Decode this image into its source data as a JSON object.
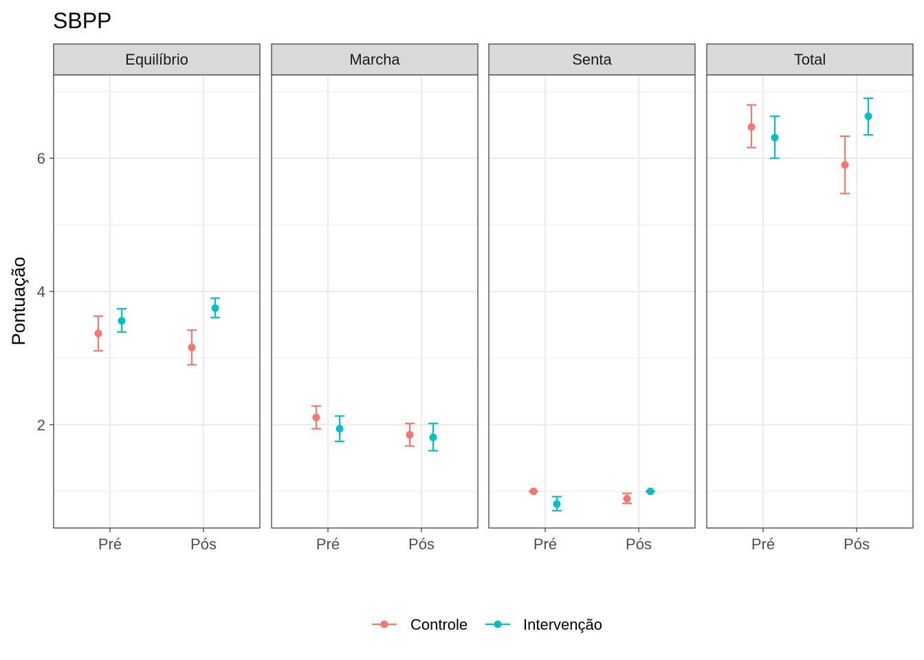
{
  "chart_data": {
    "type": "scatter",
    "title": "SBPP",
    "xlabel": "",
    "ylabel": "Pontuação",
    "ylim": [
      0.45,
      7.25
    ],
    "yticks": [
      2,
      4,
      6
    ],
    "grid": true,
    "legend_position": "bottom",
    "categories": [
      "Pré",
      "Pós"
    ],
    "facets": [
      "Equilíbrio",
      "Marcha",
      "Senta",
      "Total"
    ],
    "series": [
      {
        "name": "Controle",
        "color": "#F8766D",
        "panels": {
          "Equilíbrio": [
            {
              "x": "Pré",
              "y": 3.37,
              "ymin": 3.11,
              "ymax": 3.63
            },
            {
              "x": "Pós",
              "y": 3.16,
              "ymin": 2.9,
              "ymax": 3.42
            }
          ],
          "Marcha": [
            {
              "x": "Pré",
              "y": 2.11,
              "ymin": 1.94,
              "ymax": 2.28
            },
            {
              "x": "Pós",
              "y": 1.85,
              "ymin": 1.68,
              "ymax": 2.02
            }
          ],
          "Senta": [
            {
              "x": "Pré",
              "y": 1.0,
              "ymin": 1.0,
              "ymax": 1.0
            },
            {
              "x": "Pós",
              "y": 0.89,
              "ymin": 0.82,
              "ymax": 0.97
            }
          ],
          "Total": [
            {
              "x": "Pré",
              "y": 6.47,
              "ymin": 6.16,
              "ymax": 6.8
            },
            {
              "x": "Pós",
              "y": 5.9,
              "ymin": 5.47,
              "ymax": 6.33
            }
          ]
        }
      },
      {
        "name": "Intervenção",
        "color": "#00BFC4",
        "panels": {
          "Equilíbrio": [
            {
              "x": "Pré",
              "y": 3.56,
              "ymin": 3.39,
              "ymax": 3.74
            },
            {
              "x": "Pós",
              "y": 3.75,
              "ymin": 3.61,
              "ymax": 3.9
            }
          ],
          "Marcha": [
            {
              "x": "Pré",
              "y": 1.94,
              "ymin": 1.75,
              "ymax": 2.13
            },
            {
              "x": "Pós",
              "y": 1.81,
              "ymin": 1.61,
              "ymax": 2.02
            }
          ],
          "Senta": [
            {
              "x": "Pré",
              "y": 0.81,
              "ymin": 0.71,
              "ymax": 0.92
            },
            {
              "x": "Pós",
              "y": 1.0,
              "ymin": 1.0,
              "ymax": 1.0
            }
          ],
          "Total": [
            {
              "x": "Pré",
              "y": 6.31,
              "ymin": 6.0,
              "ymax": 6.63
            },
            {
              "x": "Pós",
              "y": 6.63,
              "ymin": 6.35,
              "ymax": 6.9
            }
          ]
        }
      }
    ]
  }
}
